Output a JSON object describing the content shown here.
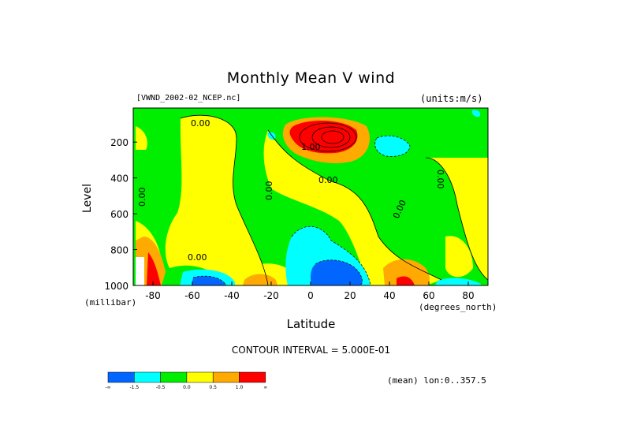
{
  "page": {
    "title": "Monthly Mean V wind",
    "source": "[VWND_2002-02_NCEP.nc]",
    "units": "(units:m/s)",
    "ylabel": "Level",
    "yunit": "(millibar)",
    "xlabel": "Latitude",
    "xunit": "(degrees_north)",
    "contour_interval": "CONTOUR INTERVAL = 5.000E-01",
    "mean_note": "(mean) lon:0..357.5"
  },
  "chart_data": {
    "type": "heatmap",
    "title": "Monthly Mean V wind",
    "xlabel": "Latitude",
    "ylabel": "Level",
    "x_ticks": [
      -80,
      -60,
      -40,
      -20,
      0,
      20,
      40,
      60,
      80
    ],
    "x_tick_labels": [
      "-80",
      "-60",
      "-40",
      "-20",
      "0",
      "20",
      "40",
      "60",
      "80"
    ],
    "y_ticks": [
      200,
      400,
      600,
      800,
      1000
    ],
    "y_tick_labels": [
      "200",
      "400",
      "600",
      "800",
      "1000"
    ],
    "xlim": [
      -90,
      90
    ],
    "ylim": [
      1000,
      10
    ],
    "units": "m/s",
    "contour_interval": 0.5,
    "contour_labels": [
      "0.00",
      "1.00"
    ],
    "colorbar": {
      "colors": [
        "#0066ff",
        "#00ffff",
        "#00ee00",
        "#ffff00",
        "#ffaa00",
        "#ff0000"
      ],
      "labels": [
        "-∞",
        "-1.5",
        "-0.5",
        "0.0",
        "0.5",
        "1.0",
        "∞"
      ]
    },
    "features": [
      {
        "lat": 8,
        "level": 140,
        "value": 2.8,
        "sign": "positive"
      },
      {
        "lat": 32,
        "level": 210,
        "value": -0.8,
        "sign": "negative"
      },
      {
        "lat": 6,
        "level": 950,
        "value": -2.5,
        "sign": "negative"
      },
      {
        "lat": -58,
        "level": 990,
        "value": -2.0,
        "sign": "negative"
      },
      {
        "lat": 48,
        "level": 990,
        "value": 1.5,
        "sign": "positive"
      },
      {
        "lat": -25,
        "level": 990,
        "value": 0.8,
        "sign": "positive"
      },
      {
        "lat": -84,
        "level": 900,
        "value": 2.0,
        "sign": "positive"
      }
    ]
  }
}
